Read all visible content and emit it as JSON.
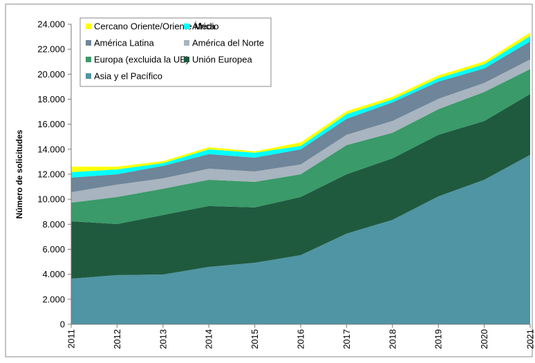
{
  "chart_data": {
    "type": "stacked_area",
    "ylabel": "Número de solicitudes",
    "x": [
      2011,
      2012,
      2013,
      2014,
      2015,
      2016,
      2017,
      2018,
      2019,
      2020,
      2021
    ],
    "xlim": [
      2011,
      2021
    ],
    "xticks": [
      2011,
      2012,
      2013,
      2014,
      2015,
      2016,
      2017,
      2018,
      2019,
      2020,
      2021
    ],
    "ylim": [
      0,
      24000
    ],
    "yticks": [
      0,
      {
        "value": 2000,
        "label": "2.000"
      },
      {
        "value": 4000,
        "label": "4.000"
      },
      {
        "value": 6000,
        "label": "6.000"
      },
      {
        "value": 8000,
        "label": "8.000"
      },
      {
        "value": 10000,
        "label": "10.000"
      },
      {
        "value": 12000,
        "label": "12.000"
      },
      {
        "value": 14000,
        "label": "14.000"
      },
      {
        "value": 16000,
        "label": "16.000"
      },
      {
        "value": 18000,
        "label": "18.000"
      },
      {
        "value": 20000,
        "label": "20.000"
      },
      {
        "value": 22000,
        "label": "22.000"
      },
      {
        "value": 24000,
        "label": "24.000"
      }
    ],
    "legend": "upper left",
    "series": [
      {
        "name": "Asia y el Pacífico",
        "color": "#4f95a4",
        "values": [
          3650,
          3930,
          3980,
          4590,
          4920,
          5530,
          7250,
          8350,
          10230,
          11560,
          13550
        ]
      },
      {
        "name": "Unión Europea",
        "color": "#1f5a3f",
        "values": [
          4590,
          4090,
          4760,
          4870,
          4430,
          4650,
          4750,
          4920,
          4920,
          4700,
          4870
        ]
      },
      {
        "name": "Europa (excluida la UE)",
        "color": "#3a9a69",
        "values": [
          1490,
          2160,
          2100,
          2100,
          2040,
          1820,
          2330,
          2050,
          2050,
          2320,
          1990
        ]
      },
      {
        "name": "América del Norte",
        "color": "#a8b4bf",
        "values": [
          830,
          990,
          830,
          880,
          830,
          780,
          820,
          940,
          830,
          720,
          770
        ]
      },
      {
        "name": "América Latina",
        "color": "#6f8599",
        "values": [
          1170,
          830,
          1000,
          1170,
          1110,
          1210,
          1280,
          1490,
          1380,
          1160,
          1440
        ]
      },
      {
        "name": "África",
        "color": "#00ffff",
        "values": [
          440,
          390,
          220,
          380,
          390,
          280,
          380,
          230,
          280,
          340,
          440
        ]
      },
      {
        "name": "Cercano Oriente/Oriente Medio",
        "color": "#ffff00",
        "values": [
          440,
          220,
          160,
          170,
          110,
          280,
          230,
          220,
          220,
          220,
          280
        ]
      }
    ]
  }
}
